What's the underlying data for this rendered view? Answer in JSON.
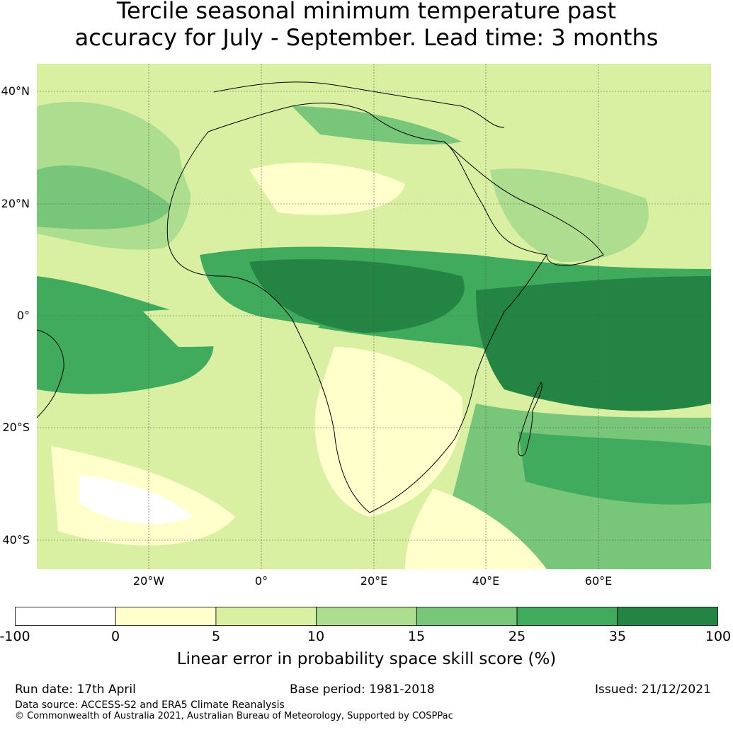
{
  "title": {
    "line1": "Tercile seasonal minimum temperature past",
    "line2": "accuracy for July - September. Lead time: 3 months"
  },
  "map": {
    "lat_labels": [
      "40°N",
      "20°N",
      "0°",
      "20°S",
      "40°S"
    ],
    "lon_labels": [
      "20°W",
      "0°",
      "20°E",
      "40°E",
      "60°E"
    ],
    "gridlines": true
  },
  "colorbar": {
    "ticks": [
      "-100",
      "0",
      "5",
      "10",
      "15",
      "25",
      "35",
      "100"
    ],
    "colors": [
      "#ffffff",
      "#ffffcc",
      "#d9f0a3",
      "#addd8e",
      "#78c679",
      "#41ab5d",
      "#238443"
    ],
    "label": "Linear error in probability space skill score (%)"
  },
  "footer": {
    "run_date": "Run date: 17th April",
    "base_period": "Base period: 1981-2018",
    "issued": "Issued: 21/12/2021",
    "data_source": "Data source: ACCESS-S2 and ERA5 Climate Reanalysis",
    "copyright": "© Commonwealth of Australia 2021, Australian Bureau of Meteorology, Supported by COSPPac"
  }
}
